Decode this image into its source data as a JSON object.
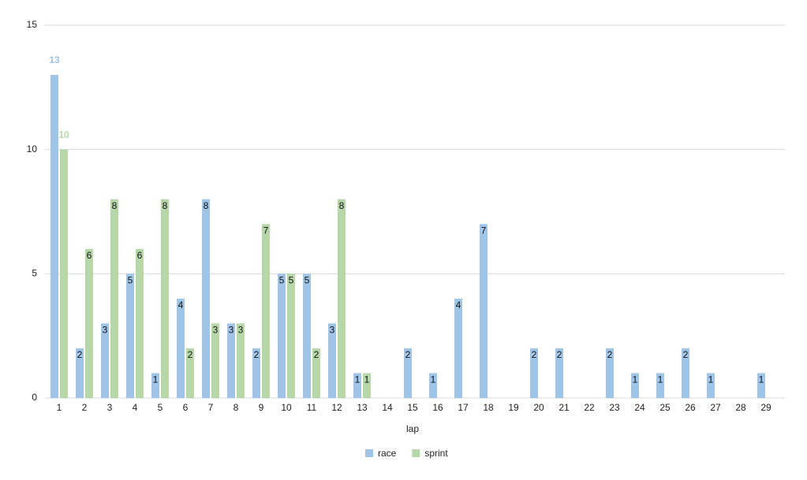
{
  "chart_data": {
    "type": "bar",
    "x_label": "lap",
    "categories": [
      "1",
      "2",
      "3",
      "4",
      "5",
      "6",
      "7",
      "8",
      "9",
      "10",
      "11",
      "12",
      "13",
      "14",
      "15",
      "16",
      "17",
      "18",
      "19",
      "20",
      "21",
      "22",
      "23",
      "24",
      "25",
      "26",
      "27",
      "28",
      "29"
    ],
    "series": [
      {
        "name": "race",
        "color": "#9fc5e8",
        "values": [
          13,
          2,
          3,
          5,
          1,
          4,
          8,
          3,
          2,
          5,
          5,
          3,
          1,
          null,
          2,
          1,
          4,
          7,
          null,
          2,
          2,
          null,
          2,
          1,
          1,
          2,
          1,
          null,
          1
        ]
      },
      {
        "name": "sprint",
        "color": "#b6d7a8",
        "values": [
          10,
          6,
          8,
          6,
          8,
          2,
          3,
          3,
          7,
          5,
          2,
          8,
          1,
          null,
          null,
          null,
          null,
          null,
          null,
          null,
          null,
          null,
          null,
          null,
          null,
          null,
          null,
          null,
          null
        ]
      }
    ],
    "ylim": [
      0,
      15
    ],
    "yticks": [
      0,
      5,
      10,
      15
    ],
    "grid": true,
    "legend": "bottom"
  }
}
